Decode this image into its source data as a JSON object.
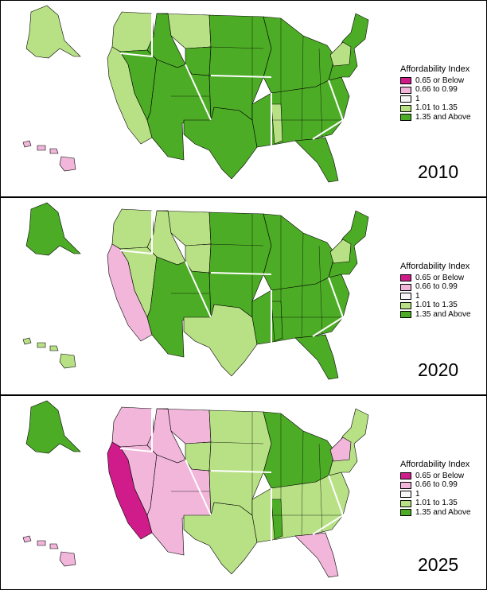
{
  "legend": {
    "title": "Affordability Index",
    "items": [
      {
        "label": "0.65 or Below",
        "color": "#d01c8b"
      },
      {
        "label": "0.66 to 0.99",
        "color": "#f1b6da"
      },
      {
        "label": "1",
        "color": "#f7f7f7"
      },
      {
        "label": "1.01 to 1.35",
        "color": "#b8e186"
      },
      {
        "label": "1.35 and Above",
        "color": "#4dac26"
      }
    ]
  },
  "panels": [
    {
      "year": "2010",
      "regions": {
        "pacific_coast": "#b8e186",
        "california": "#b8e186",
        "nevada": "#4dac26",
        "northern_rockies": "#4dac26",
        "montana": "#b8e186",
        "southwest": "#4dac26",
        "mountain_central": "#4dac26",
        "texas": "#4dac26",
        "plains": "#4dac26",
        "midwest": "#4dac26",
        "south": "#4dac26",
        "mississippi": "#b8e186",
        "florida": "#4dac26",
        "northeast": "#4dac26",
        "new_york": "#b8e186",
        "alaska": "#b8e186",
        "hawaii": "#f1b6da"
      }
    },
    {
      "year": "2020",
      "regions": {
        "pacific_coast": "#b8e186",
        "california": "#f1b6da",
        "nevada": "#b8e186",
        "northern_rockies": "#b8e186",
        "montana": "#b8e186",
        "southwest": "#4dac26",
        "mountain_central": "#b8e186",
        "texas": "#b8e186",
        "plains": "#4dac26",
        "midwest": "#4dac26",
        "south": "#4dac26",
        "mississippi": "#4dac26",
        "florida": "#4dac26",
        "northeast": "#4dac26",
        "new_york": "#b8e186",
        "alaska": "#4dac26",
        "hawaii": "#b8e186"
      }
    },
    {
      "year": "2025",
      "regions": {
        "pacific_coast": "#f1b6da",
        "california": "#d01c8b",
        "nevada": "#f1b6da",
        "northern_rockies": "#f1b6da",
        "montana": "#f1b6da",
        "southwest": "#f1b6da",
        "mountain_central": "#b8e186",
        "texas": "#b8e186",
        "plains": "#b8e186",
        "midwest": "#4dac26",
        "south": "#b8e186",
        "mississippi": "#4dac26",
        "florida": "#f1b6da",
        "northeast": "#b8e186",
        "new_york": "#f1b6da",
        "alaska": "#4dac26",
        "hawaii": "#f1b6da"
      }
    }
  ]
}
